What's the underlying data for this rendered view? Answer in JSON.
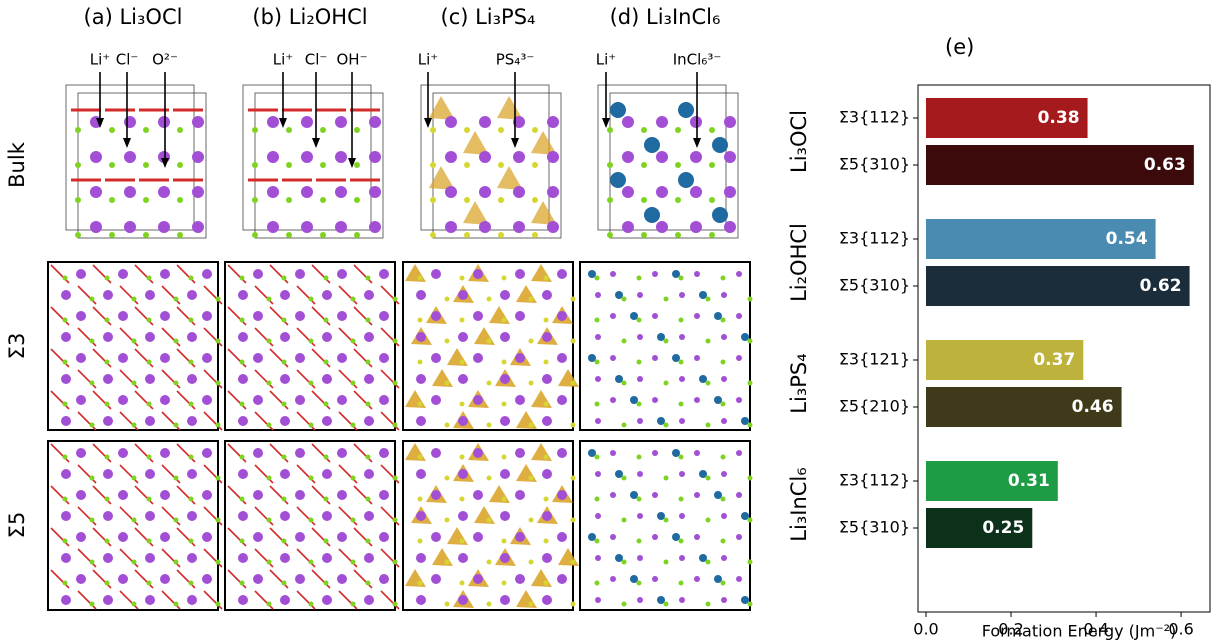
{
  "panels": {
    "columns": [
      {
        "label": "(a) Li₃OCl",
        "species": [
          "Li⁺",
          "Cl⁻",
          "O²⁻"
        ]
      },
      {
        "label": "(b) Li₂OHCl",
        "species": [
          "Li⁺",
          "Cl⁻",
          "OH⁻"
        ]
      },
      {
        "label": "(c) Li₃PS₄",
        "species": [
          "Li⁺",
          "PS₄³⁻"
        ]
      },
      {
        "label": "(d) Li₃InCl₆",
        "species": [
          "Li⁺",
          "InCl₆³⁻"
        ]
      }
    ],
    "rows": [
      "Bulk",
      "Σ3",
      "Σ5"
    ]
  },
  "chart_data": {
    "type": "barh",
    "label": "(e)",
    "groups": [
      "Li₃OCl",
      "Li₂OHCl",
      "Li₃PS₄",
      "Li₃InCl₆"
    ],
    "categories": [
      "Σ3{112}",
      "Σ5{310}",
      "Σ3{112}",
      "Σ5{310}",
      "Σ3{121}",
      "Σ5{210}",
      "Σ3{112}",
      "Σ5{310}"
    ],
    "values": [
      0.38,
      0.63,
      0.54,
      0.62,
      0.37,
      0.46,
      0.31,
      0.25
    ],
    "colors": [
      "#a51a1c",
      "#3d0a0c",
      "#4a8bb2",
      "#1b2c3b",
      "#bcb23c",
      "#3f3a19",
      "#1e9b45",
      "#0b311a"
    ],
    "xlabel": "Formation Energy (Jm⁻²)",
    "xlim": [
      -0.0188,
      0.668
    ],
    "xticks": [
      {
        "value": 0,
        "label": "0.0"
      },
      {
        "value": 0.2,
        "label": "0.2"
      },
      {
        "value": 0.4,
        "label": "0.4"
      },
      {
        "value": 0.6,
        "label": "0.6"
      }
    ]
  }
}
